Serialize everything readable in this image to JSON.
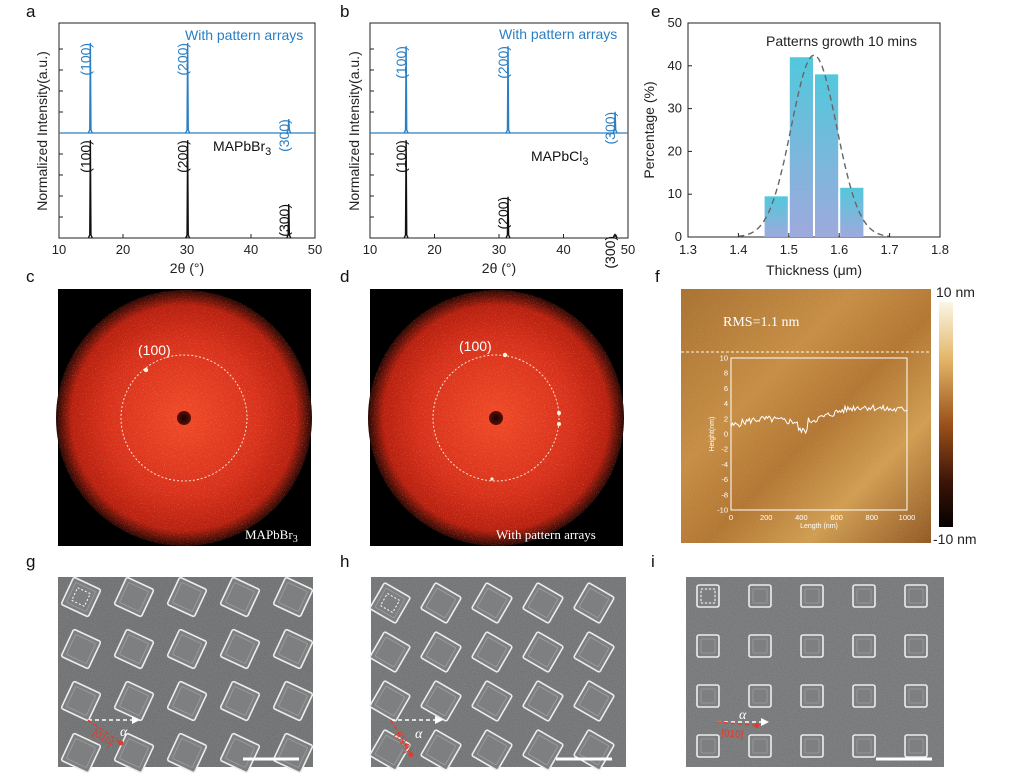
{
  "panels": {
    "a": {
      "label": "a",
      "ylabel": "Normalized Intensity(a.u.)",
      "xlabel": "2θ (°)",
      "top_legend": "With pattern arrays",
      "bottom_legend_main": "MAPbBr",
      "bottom_legend_sub": "3",
      "peaks_top": [
        "(100)",
        "(200)",
        "(300)"
      ],
      "peaks_bottom": [
        "(100)",
        "(200)",
        "(300)"
      ]
    },
    "b": {
      "label": "b",
      "ylabel": "Normalized Intensity(a.u.)",
      "xlabel": "2θ (°)",
      "top_legend": "With pattern arrays",
      "bottom_legend_main": "MAPbCl",
      "bottom_legend_sub": "3",
      "peaks_top": [
        "(100)",
        "(200)",
        "(300)"
      ],
      "peaks_bottom": [
        "(100)",
        "(200)",
        "(300)"
      ]
    },
    "e": {
      "label": "e",
      "title": "Patterns growth 10 mins",
      "xlabel": "Thickness (μm)",
      "ylabel": "Percentage (%)"
    },
    "c": {
      "label": "c",
      "ring_label": "(100)",
      "caption": "MAPbBr",
      "caption_sub": "3"
    },
    "d": {
      "label": "d",
      "ring_label": "(100)",
      "caption": "With pattern arrays"
    },
    "f": {
      "label": "f",
      "rms": "RMS=1.1 nm",
      "cbar_top": "10 nm",
      "cbar_bottom": "-10 nm",
      "inset_xlabel": "Length (nm)",
      "inset_ylabel": "Height(nm)"
    },
    "g": {
      "label": "g",
      "alpha": "α",
      "direction": "[010]"
    },
    "h": {
      "label": "h",
      "alpha": "α",
      "direction": "[010]"
    },
    "i": {
      "label": "i",
      "alpha": "α",
      "direction": "[010]"
    }
  },
  "colors": {
    "top_pattern": "#2a7fc4",
    "bottom_pattern": "#111111",
    "fft_red": "#d8311b",
    "sem_gray": "#6b6d6e",
    "bar_top": "#52c8dc",
    "bar_bottom": "#9ea9dc",
    "arrow_red": "#e43a2a"
  },
  "chart_data": [
    {
      "type": "line",
      "panel": "a",
      "xlabel": "2θ (°)",
      "ylabel": "Normalized Intensity(a.u.)",
      "xlim": [
        10,
        50
      ],
      "xticks": [
        10,
        20,
        30,
        40,
        50
      ],
      "series": [
        {
          "name": "With pattern arrays",
          "peaks": [
            {
              "x": 14.9,
              "height": 0.85,
              "label": "(100)"
            },
            {
              "x": 30.1,
              "height": 0.85,
              "label": "(200)"
            },
            {
              "x": 45.9,
              "height": 0.13,
              "label": "(300)"
            }
          ]
        },
        {
          "name": "MAPbBr3",
          "peaks": [
            {
              "x": 14.9,
              "height": 0.95,
              "label": "(100)"
            },
            {
              "x": 30.1,
              "height": 0.95,
              "label": "(200)"
            },
            {
              "x": 45.9,
              "height": 0.33,
              "label": "(300)"
            }
          ]
        }
      ]
    },
    {
      "type": "line",
      "panel": "b",
      "xlabel": "2θ (°)",
      "ylabel": "Normalized Intensity(a.u.)",
      "xlim": [
        10,
        50
      ],
      "xticks": [
        10,
        20,
        30,
        40,
        50
      ],
      "series": [
        {
          "name": "With pattern arrays",
          "peaks": [
            {
              "x": 15.6,
              "height": 0.82,
              "label": "(100)"
            },
            {
              "x": 31.4,
              "height": 0.82,
              "label": "(200)"
            },
            {
              "x": 48.0,
              "height": 0.2,
              "label": "(300)"
            }
          ]
        },
        {
          "name": "MAPbCl3",
          "peaks": [
            {
              "x": 15.6,
              "height": 0.95,
              "label": "(100)"
            },
            {
              "x": 31.4,
              "height": 0.4,
              "label": "(200)"
            },
            {
              "x": 48.0,
              "height": 0.02,
              "label": "(300)"
            }
          ]
        }
      ]
    },
    {
      "type": "bar",
      "panel": "e",
      "title": "Patterns growth 10 mins",
      "xlabel": "Thickness (μm)",
      "ylabel": "Percentage (%)",
      "xlim": [
        1.3,
        1.8
      ],
      "ylim": [
        0,
        50
      ],
      "xticks": [
        1.3,
        1.4,
        1.5,
        1.6,
        1.7,
        1.8
      ],
      "yticks": [
        0,
        10,
        20,
        30,
        40,
        50
      ],
      "bar_width": 0.05,
      "categories": [
        1.475,
        1.525,
        1.575,
        1.625
      ],
      "values": [
        9.5,
        42,
        38,
        11.5
      ],
      "fit": {
        "type": "gaussian",
        "mean": 1.55,
        "sigma": 0.045,
        "peak": 42.5
      }
    }
  ]
}
